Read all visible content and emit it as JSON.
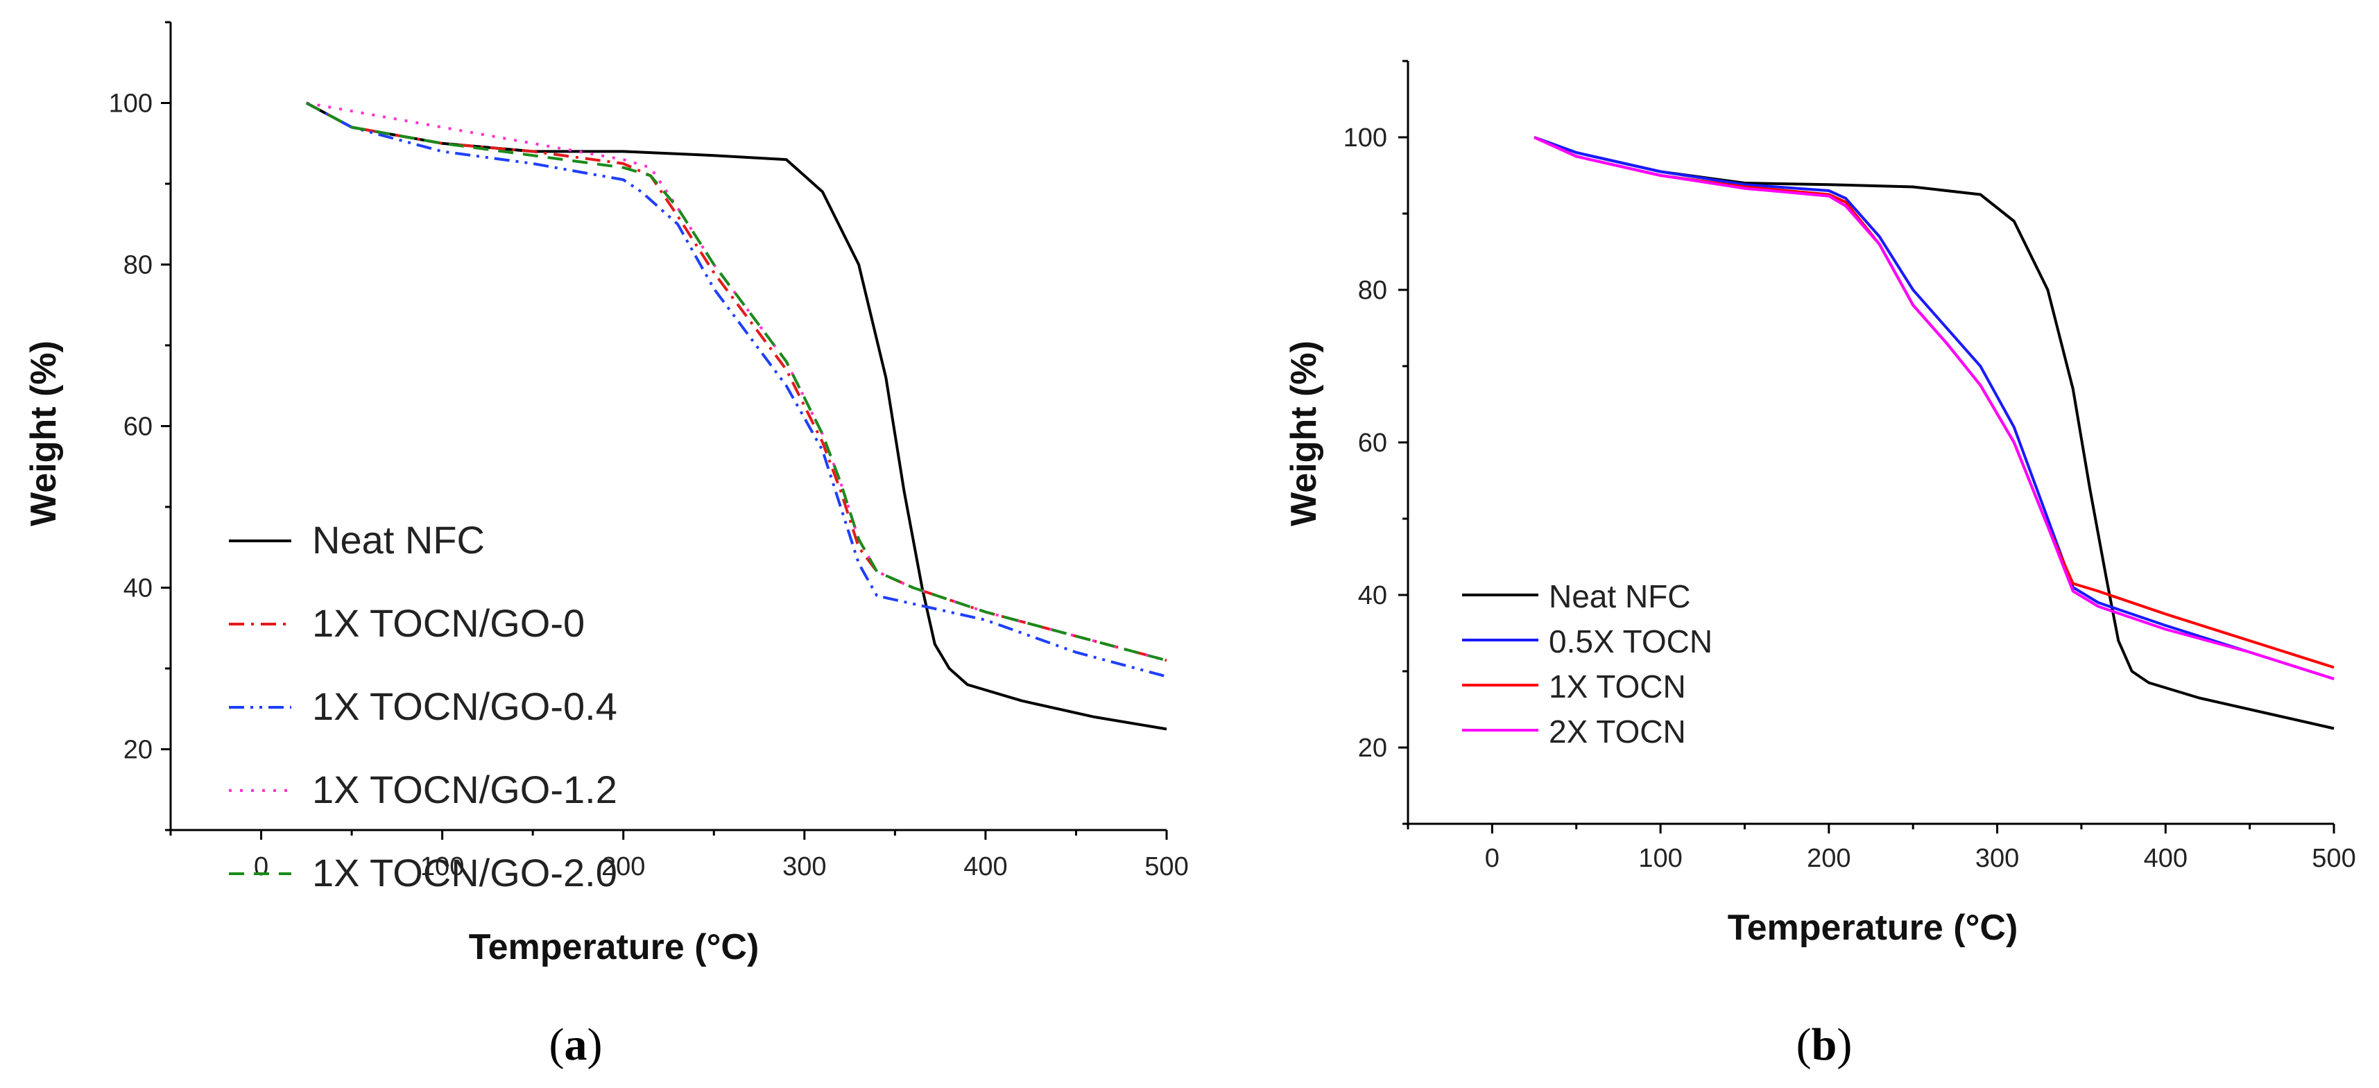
{
  "chart_data": [
    {
      "id": "a",
      "type": "line",
      "panel_label": "a",
      "title": "",
      "xlabel": "Temperature (°C)",
      "ylabel": "Weight (%)",
      "xlim": [
        -50,
        500
      ],
      "ylim": [
        10,
        110
      ],
      "xticks": [
        0,
        100,
        200,
        300,
        400,
        500
      ],
      "yticks": [
        20,
        40,
        60,
        80,
        100
      ],
      "grid": false,
      "legend_position": "lower-left",
      "series": [
        {
          "name": "Neat NFC",
          "color": "#000000",
          "dash": "solid",
          "x": [
            25,
            50,
            100,
            150,
            200,
            250,
            290,
            310,
            330,
            345,
            355,
            365,
            372,
            380,
            390,
            420,
            460,
            500
          ],
          "y": [
            100,
            97,
            95,
            94,
            94,
            93.5,
            93,
            89,
            80,
            66,
            52,
            40,
            33,
            30,
            28,
            26,
            24,
            22.5
          ]
        },
        {
          "name": "1X TOCN/GO-0",
          "color": "#e41a1c",
          "dash": "dashdot",
          "x": [
            25,
            50,
            100,
            150,
            200,
            215,
            230,
            250,
            270,
            290,
            310,
            320,
            330,
            340,
            360,
            400,
            450,
            500
          ],
          "y": [
            100,
            97,
            95,
            94,
            92.5,
            91,
            86,
            79,
            73,
            67,
            58,
            52,
            45,
            42,
            40,
            37,
            34,
            31
          ]
        },
        {
          "name": "1X TOCN/GO-0.4",
          "color": "#1f3fff",
          "dash": "dashdotdot",
          "x": [
            25,
            50,
            100,
            150,
            200,
            210,
            230,
            250,
            270,
            290,
            310,
            320,
            330,
            340,
            360,
            400,
            450,
            500
          ],
          "y": [
            100,
            97,
            94,
            92.5,
            90.5,
            89,
            85,
            77,
            71,
            65,
            57,
            50,
            43,
            39,
            38,
            36,
            32,
            29
          ]
        },
        {
          "name": "1X TOCN/GO-1.2",
          "color": "#ff33cc",
          "dash": "dot",
          "x": [
            25,
            50,
            100,
            150,
            200,
            215,
            230,
            250,
            270,
            290,
            310,
            320,
            330,
            340,
            360,
            400,
            450,
            500
          ],
          "y": [
            100,
            99,
            97,
            95,
            93,
            92,
            87,
            80,
            74,
            68,
            59,
            53,
            46,
            42,
            40,
            37,
            34,
            31
          ]
        },
        {
          "name": "1X TOCN/GO-2.0",
          "color": "#1a8a1a",
          "dash": "dash",
          "x": [
            25,
            50,
            100,
            150,
            200,
            215,
            230,
            250,
            270,
            290,
            310,
            320,
            330,
            340,
            360,
            400,
            450,
            500
          ],
          "y": [
            100,
            97,
            95,
            93.5,
            92,
            91,
            87,
            80,
            74,
            68,
            59,
            53,
            46,
            42,
            40,
            37,
            34,
            31
          ]
        }
      ]
    },
    {
      "id": "b",
      "type": "line",
      "panel_label": "b",
      "title": "",
      "xlabel": "Temperature (°C)",
      "ylabel": "Weight (%)",
      "xlim": [
        -50,
        500
      ],
      "ylim": [
        10,
        110
      ],
      "xticks": [
        0,
        100,
        200,
        300,
        400,
        500
      ],
      "yticks": [
        20,
        40,
        60,
        80,
        100
      ],
      "grid": false,
      "legend_position": "lower-left",
      "series": [
        {
          "name": "Neat NFC",
          "color": "#000000",
          "dash": "solid",
          "x": [
            25,
            50,
            100,
            150,
            200,
            250,
            290,
            310,
            330,
            345,
            355,
            365,
            372,
            380,
            390,
            420,
            460,
            500
          ],
          "y": [
            100,
            98,
            95.5,
            94,
            93.8,
            93.5,
            92.5,
            89,
            80,
            67,
            54,
            42,
            34,
            30,
            28.5,
            26.5,
            24.5,
            22.5
          ]
        },
        {
          "name": "0.5X TOCN",
          "color": "#1a1aff",
          "dash": "solid",
          "x": [
            25,
            50,
            100,
            150,
            200,
            210,
            230,
            250,
            270,
            290,
            310,
            330,
            345,
            360,
            400,
            450,
            500
          ],
          "y": [
            100,
            98,
            95.5,
            93.8,
            93,
            92,
            87,
            80,
            75,
            70,
            62,
            50,
            41,
            39,
            36,
            32.5,
            29
          ]
        },
        {
          "name": "1X TOCN",
          "color": "#ff0000",
          "dash": "solid",
          "x": [
            25,
            50,
            100,
            150,
            200,
            210,
            230,
            250,
            270,
            290,
            310,
            330,
            345,
            360,
            400,
            450,
            500
          ],
          "y": [
            100,
            97.5,
            95,
            93.5,
            92.5,
            91.5,
            86,
            78,
            73,
            67.5,
            60,
            49,
            41.5,
            40.5,
            37.5,
            34,
            30.5
          ]
        },
        {
          "name": "2X TOCN",
          "color": "#ff00ff",
          "dash": "solid",
          "x": [
            25,
            50,
            100,
            150,
            200,
            210,
            230,
            250,
            270,
            290,
            310,
            330,
            345,
            360,
            400,
            450,
            500
          ],
          "y": [
            100,
            97.5,
            95,
            93.3,
            92.3,
            91,
            86,
            78,
            73,
            67.5,
            60,
            49,
            40.5,
            38.5,
            35.5,
            32.5,
            29
          ]
        }
      ]
    }
  ]
}
